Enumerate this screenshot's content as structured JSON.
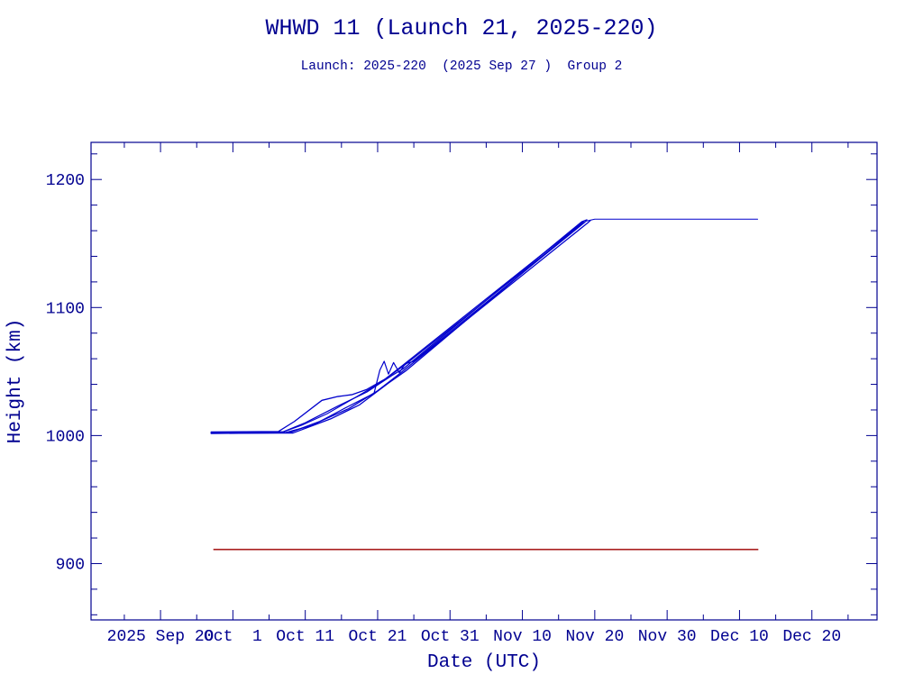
{
  "header": {
    "title": "WHWD 11 (Launch 21, 2025-220)",
    "subtitle": "Launch: 2025-220  (2025 Sep 27 )  Group 2"
  },
  "chart_data": {
    "type": "line",
    "title": "WHWD 11 (Launch 21, 2025-220)",
    "subtitle": "Launch: 2025-220  (2025 Sep 27 )  Group 2",
    "xlabel": "Date (UTC)",
    "ylabel": "Height (km)",
    "x_unit": "days since 2025 Sep 20",
    "xlim": [
      -9.6,
      99.0
    ],
    "ylim": [
      856,
      1229
    ],
    "grid": false,
    "legend": "none",
    "x_ticks": [
      {
        "day": 0,
        "label": "2025 Sep 20"
      },
      {
        "day": 10,
        "label": "Oct  1"
      },
      {
        "day": 20,
        "label": "Oct 11"
      },
      {
        "day": 30,
        "label": "Oct 21"
      },
      {
        "day": 40,
        "label": "Oct 31"
      },
      {
        "day": 50,
        "label": "Nov 10"
      },
      {
        "day": 60,
        "label": "Nov 20"
      },
      {
        "day": 70,
        "label": "Nov 30"
      },
      {
        "day": 80,
        "label": "Dec 10"
      },
      {
        "day": 90,
        "label": "Dec 20"
      }
    ],
    "x_minor_step_days": 5,
    "y_ticks": [
      900,
      1000,
      1100,
      1200
    ],
    "y_minor_step_km": 20,
    "colors": {
      "axis": "#000090",
      "text": "#000090",
      "series": "#0000CC",
      "reference": "#AA2222"
    },
    "description": "Cluster of satellite height tracks: flat near 1003 km from launch (Sep 27) until ~Oct 7, rising to ~1168 km by ~Nov 18, one track continuing flat to ~Dec 12; red reference line at ~911 km.",
    "series": [
      {
        "name": "object-track-1",
        "width": 1.1,
        "points": [
          [
            7.0,
            1002.2
          ],
          [
            16.8,
            1002.6
          ],
          [
            19.5,
            1008
          ],
          [
            23,
            1017
          ],
          [
            27,
            1030
          ],
          [
            30,
            1040
          ],
          [
            33.5,
            1054
          ],
          [
            58.8,
            1167.5
          ],
          [
            60,
            1169
          ],
          [
            82.5,
            1169
          ]
        ]
      },
      {
        "name": "object-track-2",
        "width": 1.3,
        "points": [
          [
            7.0,
            1002.8
          ],
          [
            16.3,
            1003.2
          ],
          [
            18.5,
            1011
          ],
          [
            22.3,
            1027.5
          ],
          [
            24.5,
            1030.5
          ],
          [
            26.5,
            1032
          ],
          [
            28.5,
            1036
          ],
          [
            31,
            1044
          ],
          [
            33.5,
            1055
          ],
          [
            58.5,
            1167.5
          ]
        ]
      },
      {
        "name": "object-track-3",
        "width": 1.2,
        "points": [
          [
            7.0,
            1002.0
          ],
          [
            17.3,
            1002.4
          ],
          [
            21,
            1008
          ],
          [
            25,
            1020
          ],
          [
            29.5,
            1033
          ],
          [
            30.3,
            1051
          ],
          [
            30.9,
            1058
          ],
          [
            31.5,
            1048
          ],
          [
            32.2,
            1057
          ],
          [
            33,
            1049
          ],
          [
            33.8,
            1056
          ],
          [
            35,
            1058
          ],
          [
            58.6,
            1166.5
          ]
        ]
      },
      {
        "name": "object-track-4",
        "width": 1.3,
        "points": [
          [
            7.0,
            1001.6
          ],
          [
            17.8,
            1002.2
          ],
          [
            22,
            1011
          ],
          [
            26,
            1021
          ],
          [
            30,
            1035
          ],
          [
            33.2,
            1049
          ],
          [
            34.5,
            1055
          ],
          [
            59.0,
            1166
          ],
          [
            59.4,
            1168
          ]
        ]
      },
      {
        "name": "object-track-5",
        "width": 1.3,
        "points": [
          [
            7.0,
            1002.5
          ],
          [
            17.0,
            1003.0
          ],
          [
            20,
            1010
          ],
          [
            24.5,
            1023
          ],
          [
            28.5,
            1034
          ],
          [
            32,
            1047
          ],
          [
            33.5,
            1052
          ],
          [
            58.2,
            1167
          ],
          [
            58.9,
            1168.5
          ]
        ]
      },
      {
        "name": "object-track-6",
        "width": 1.3,
        "points": [
          [
            7.0,
            1001.8
          ],
          [
            18.3,
            1002.0
          ],
          [
            23.5,
            1013
          ],
          [
            27.5,
            1024
          ],
          [
            31.5,
            1041
          ],
          [
            34,
            1051
          ],
          [
            58.4,
            1166.8
          ]
        ]
      }
    ],
    "red_line": {
      "height_km": 911,
      "points": [
        [
          7.3,
          911
        ],
        [
          82.6,
          911
        ]
      ]
    }
  }
}
